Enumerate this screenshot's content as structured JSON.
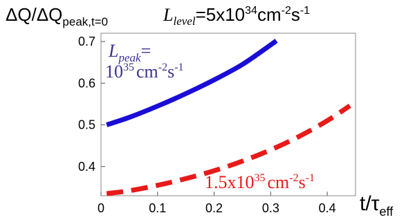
{
  "chart_data": {
    "type": "line",
    "ylabel": {
      "base": "ΔQ/ΔQ",
      "sub": "peak,t=0"
    },
    "title": {
      "italic": "L",
      "sub": "level",
      "text": "=5x10",
      "sup1": "34",
      "unit": "cm",
      "sup2": "-2",
      "s": "s",
      "sup3": "-1"
    },
    "xlabel": {
      "base": "t/τ",
      "sub": "eff"
    },
    "xlim": [
      0,
      0.45
    ],
    "ylim": [
      0.33,
      0.72
    ],
    "xticks": [
      "0",
      "0.1",
      "0.2",
      "0.3",
      "0.4"
    ],
    "yticks": [
      "0.4",
      "0.5",
      "0.6",
      "0.7"
    ],
    "series": [
      {
        "name": "L_peak=10^35 cm^-2 s^-1",
        "color": "#1a0dd6",
        "style": "solid",
        "x": [
          0.01,
          0.05,
          0.1,
          0.15,
          0.2,
          0.25,
          0.3,
          0.31
        ],
        "y": [
          0.5,
          0.518,
          0.545,
          0.575,
          0.608,
          0.645,
          0.692,
          0.702
        ]
      },
      {
        "name": "1.5x10^35 cm^-2 s^-1",
        "color": "#e81a1a",
        "style": "dashed",
        "x": [
          0.01,
          0.05,
          0.1,
          0.15,
          0.2,
          0.25,
          0.3,
          0.35,
          0.4,
          0.44
        ],
        "y": [
          0.335,
          0.342,
          0.355,
          0.371,
          0.39,
          0.413,
          0.44,
          0.472,
          0.51,
          0.546
        ]
      }
    ],
    "annotations": [
      {
        "italic": "L",
        "sub": "peak",
        "eq": "=",
        "num": "10",
        "sup": "35",
        "unit": "cm",
        "sup2": "-2",
        "s": "s",
        "sup3": "-1",
        "color": "#3b3392"
      },
      {
        "num": "1.5x10",
        "sup": "35",
        "unit": "cm",
        "sup2": "-2",
        "s": "s",
        "sup3": "-1",
        "color": "#e81a1a"
      }
    ]
  }
}
